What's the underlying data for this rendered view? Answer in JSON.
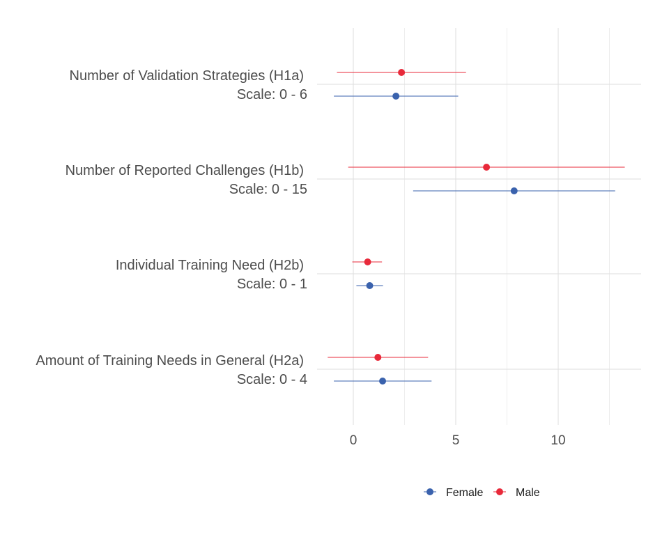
{
  "chart_data": {
    "type": "scatter",
    "subtype": "dot-and-whisker (mean with interval by gender)",
    "title": "",
    "xlabel": "",
    "ylabel": "",
    "xlim": [
      -1.7,
      14
    ],
    "x_ticks": [
      0,
      5,
      10
    ],
    "x_tick_labels": [
      "0",
      "5",
      "10"
    ],
    "grid": true,
    "legend_position": "bottom",
    "categories": [
      {
        "title": "Number of Validation Strategies (H1a)",
        "scale": "Scale: 0 - 6"
      },
      {
        "title": "Number of Reported Challenges (H1b)",
        "scale": "Scale: 0 - 15"
      },
      {
        "title": "Individual Training Need (H2b)",
        "scale": "Scale: 0 - 1"
      },
      {
        "title": "Amount of Training Needs in General (H2a)",
        "scale": "Scale: 0 - 4"
      }
    ],
    "series": [
      {
        "name": "Female",
        "color": "#3a62ad",
        "points": [
          {
            "category": 0,
            "value": 2.08,
            "low": -0.95,
            "high": 5.12
          },
          {
            "category": 1,
            "value": 7.85,
            "low": 2.92,
            "high": 12.78
          },
          {
            "category": 2,
            "value": 0.8,
            "low": 0.15,
            "high": 1.45
          },
          {
            "category": 3,
            "value": 1.43,
            "low": -0.95,
            "high": 3.82
          }
        ]
      },
      {
        "name": "Male",
        "color": "#e8293a",
        "points": [
          {
            "category": 0,
            "value": 2.35,
            "low": -0.8,
            "high": 5.5
          },
          {
            "category": 1,
            "value": 6.5,
            "low": -0.25,
            "high": 13.25
          },
          {
            "category": 2,
            "value": 0.7,
            "low": -0.05,
            "high": 1.4
          },
          {
            "category": 3,
            "value": 1.2,
            "low": -1.25,
            "high": 3.65
          }
        ]
      }
    ]
  }
}
